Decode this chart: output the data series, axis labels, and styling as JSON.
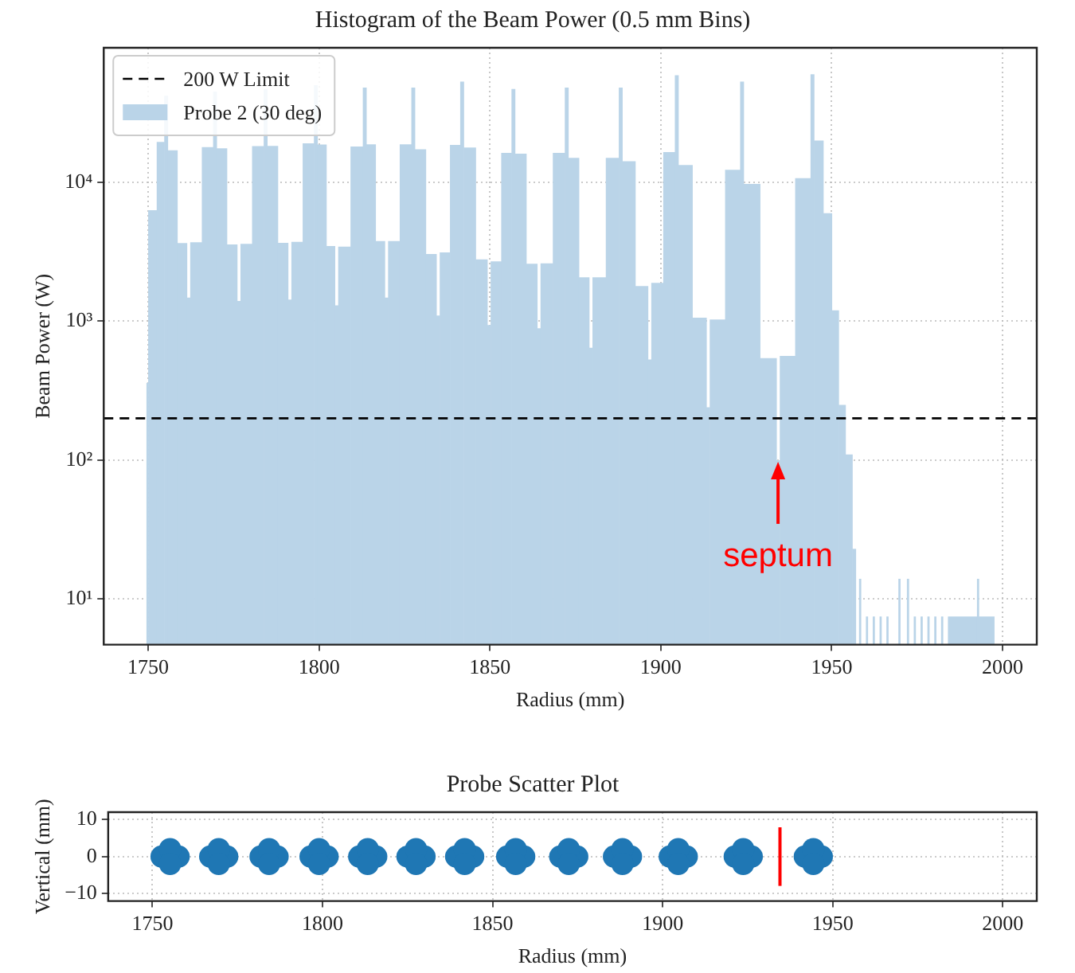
{
  "chart_data": [
    {
      "type": "histogram",
      "title": "Histogram of the Beam Power (0.5 mm Bins)",
      "xlabel": "Radius (mm)",
      "ylabel": "Beam Power (W)",
      "bins": [
        1749.5,
        1750,
        1752.5,
        1754.7,
        1755.7,
        1758.5,
        1761.3,
        1762.3,
        1765.7,
        1769.0,
        1770.0,
        1773.0,
        1776.0,
        1777.0,
        1780.4,
        1783.8,
        1784.8,
        1787.9,
        1790.9,
        1791.9,
        1795.2,
        1798.5,
        1799.5,
        1802.1,
        1804.6,
        1805.6,
        1809.2,
        1812.8,
        1813.8,
        1816.5,
        1819.2,
        1820.2,
        1823.6,
        1827.0,
        1828.0,
        1831.2,
        1834.3,
        1835.3,
        1838.3,
        1841.3,
        1842.3,
        1845.8,
        1849.2,
        1850.2,
        1853.3,
        1856.3,
        1857.3,
        1860.6,
        1863.8,
        1864.8,
        1868.4,
        1871.9,
        1872.9,
        1876.0,
        1879.0,
        1880.0,
        1883.9,
        1887.7,
        1888.7,
        1892.5,
        1896.2,
        1897.2,
        1900.7,
        1904.1,
        1905.1,
        1909.2,
        1913.3,
        1914.3,
        1918.8,
        1923.2,
        1924.2,
        1929.0,
        1933.8,
        1934.8,
        1939.3,
        1943.8,
        1944.8,
        1947.5,
        1950,
        1952,
        1954,
        1956,
        1957,
        1958,
        1958.5,
        1960,
        1960.5,
        1962,
        1962.5,
        1964,
        1964.5,
        1966,
        1966.5,
        1969.5,
        1970,
        1972,
        1972.5,
        1974,
        1974.5,
        1976,
        1976.5,
        1978,
        1978.5,
        1980,
        1980.5,
        1982,
        1982.5,
        1984,
        1992.5,
        1993,
        1997.5
      ],
      "series": [
        {
          "name": "Probe 2 (30 deg)",
          "color": "#bad4e8",
          "values": [
            360,
            6300,
            19500,
            42000,
            17000,
            3650,
            1480,
            3700,
            17900,
            45000,
            17600,
            3570,
            1400,
            3610,
            18200,
            47000,
            18300,
            3670,
            1430,
            3730,
            19100,
            50000,
            18700,
            3480,
            1300,
            3440,
            18100,
            48000,
            18800,
            3780,
            1480,
            3780,
            18800,
            48000,
            17300,
            3050,
            1100,
            3130,
            18600,
            53000,
            17800,
            2790,
            940,
            2700,
            16300,
            47000,
            16100,
            2590,
            890,
            2610,
            16300,
            48000,
            15000,
            2070,
            645,
            2070,
            15000,
            48000,
            14200,
            1790,
            530,
            1890,
            16500,
            59000,
            13300,
            1060,
            240,
            1030,
            12300,
            53000,
            9750,
            543,
            100,
            562,
            10700,
            60000,
            20000,
            6000,
            1200,
            250,
            110,
            23,
            null,
            14,
            null,
            7.5,
            null,
            7.5,
            null,
            7.5,
            null,
            7.5,
            null,
            14,
            null,
            14,
            null,
            7.5,
            null,
            7.5,
            null,
            7.5,
            null,
            7.5,
            null,
            7.5,
            null,
            7.5,
            14,
            7.5
          ]
        }
      ],
      "xlim": [
        1737,
        2010
      ],
      "xticks": [
        1750,
        1800,
        1850,
        1900,
        1950,
        2000
      ],
      "ylim": [
        4.7,
        93000
      ],
      "yticks": [
        {
          "value": 10,
          "label": "10¹"
        },
        {
          "value": 100,
          "label": "10²"
        },
        {
          "value": 1000,
          "label": "10³"
        },
        {
          "value": 10000,
          "label": "10⁴"
        }
      ],
      "log": "y",
      "grid": true,
      "legend": "top left",
      "ref_lines": [
        {
          "axis": "y",
          "value": 200,
          "label": "200 W Limit",
          "color": "#000000",
          "line_style": "dashed"
        }
      ],
      "annotations": [
        {
          "text": "septum",
          "x": 1934.3,
          "y": 100
        }
      ]
    },
    {
      "type": "scatter",
      "title": "Probe Scatter Plot",
      "xlabel": "Radius (mm)",
      "ylabel": "Vertical (mm)",
      "marker": "circle",
      "x": [
        1752.7,
        1757.7,
        1755.2,
        1755.2,
        1767,
        1772,
        1769.5,
        1769.5,
        1781.8,
        1786.8,
        1784.3,
        1784.3,
        1796.5,
        1801.5,
        1799,
        1799,
        1810.8,
        1815.8,
        1813.3,
        1813.3,
        1825,
        1830,
        1827.5,
        1827.5,
        1839.3,
        1844.3,
        1841.8,
        1841.8,
        1854.3,
        1859.3,
        1856.8,
        1856.8,
        1869.9,
        1874.9,
        1872.4,
        1872.4,
        1885.7,
        1890.7,
        1888.2,
        1888.2,
        1902.1,
        1907.1,
        1904.6,
        1904.6,
        1921.2,
        1926.2,
        1923.7,
        1923.7,
        1941.8,
        1946.8,
        1944.3,
        1944.3
      ],
      "series": [
        {
          "color": "#1f77b4",
          "values": [
            0,
            0,
            2,
            -2,
            0,
            0,
            2,
            -2,
            0,
            0,
            2,
            -2,
            0,
            0,
            2,
            -2,
            0,
            0,
            2,
            -2,
            0,
            0,
            2,
            -2,
            0,
            0,
            2,
            -2,
            0,
            0,
            2,
            -2,
            0,
            0,
            2,
            -2,
            0,
            0,
            2,
            -2,
            0,
            0,
            2,
            -2,
            0,
            0,
            2,
            -2,
            0,
            0,
            2,
            -2
          ]
        }
      ],
      "xlim": [
        1737,
        2010
      ],
      "xticks": [
        1750,
        1800,
        1850,
        1900,
        1950,
        2000
      ],
      "ylim": [
        -12,
        12
      ],
      "yticks": [
        {
          "value": -10,
          "label": "−10"
        },
        0,
        10
      ],
      "grid": true,
      "ref_lines": [
        {
          "axis": "x",
          "value": 1934.5,
          "color": "#ff0000"
        }
      ]
    }
  ]
}
